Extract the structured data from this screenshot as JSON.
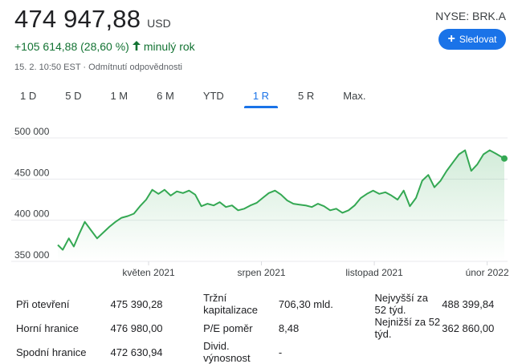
{
  "quote": {
    "price": "474 947,88",
    "currency": "USD",
    "ticker": "NYSE: BRK.A",
    "change": "+105 614,88 (28,60 %)",
    "change_arrow": "arrow-up-icon",
    "change_period": "minulý rok",
    "timestamp": "15. 2. 10:50 EST",
    "separator": "·",
    "disclaimer": "Odmítnutí odpovědnosti",
    "positive_color": "#137333",
    "accent_color": "#1a73e8"
  },
  "follow_button": {
    "icon": "plus-icon",
    "label": "Sledovat"
  },
  "range_tabs": [
    {
      "label": "1 D",
      "active": false
    },
    {
      "label": "5 D",
      "active": false
    },
    {
      "label": "1 M",
      "active": false
    },
    {
      "label": "6 M",
      "active": false
    },
    {
      "label": "YTD",
      "active": false
    },
    {
      "label": "1 R",
      "active": true
    },
    {
      "label": "5 R",
      "active": false
    },
    {
      "label": "Max.",
      "active": false
    }
  ],
  "chart_data": {
    "type": "area",
    "y_ticks": [
      "500 000",
      "450 000",
      "400 000",
      "350 000"
    ],
    "y_tick_values": [
      500000,
      450000,
      400000,
      350000
    ],
    "ylim": [
      350000,
      500000
    ],
    "x_ticks": [
      "květen 2021",
      "srpen 2021",
      "listopad 2021",
      "únor 2022"
    ],
    "x_tick_values": [
      "2021-05-01",
      "2021-08-01",
      "2021-11-01",
      "2022-02-01"
    ],
    "xlim": [
      "2021-02-16",
      "2022-02-15"
    ],
    "grid": true,
    "line_color": "#34a853",
    "x": [
      "2021-02-16",
      "2021-02-20",
      "2021-02-25",
      "2021-03-01",
      "2021-03-05",
      "2021-03-10",
      "2021-03-15",
      "2021-03-20",
      "2021-03-25",
      "2021-03-30",
      "2021-04-04",
      "2021-04-09",
      "2021-04-14",
      "2021-04-19",
      "2021-04-24",
      "2021-04-29",
      "2021-05-04",
      "2021-05-09",
      "2021-05-14",
      "2021-05-19",
      "2021-05-24",
      "2021-05-29",
      "2021-06-03",
      "2021-06-08",
      "2021-06-13",
      "2021-06-18",
      "2021-06-23",
      "2021-06-28",
      "2021-07-03",
      "2021-07-08",
      "2021-07-13",
      "2021-07-18",
      "2021-07-23",
      "2021-07-28",
      "2021-08-02",
      "2021-08-07",
      "2021-08-12",
      "2021-08-17",
      "2021-08-22",
      "2021-08-27",
      "2021-09-01",
      "2021-09-06",
      "2021-09-11",
      "2021-09-16",
      "2021-09-21",
      "2021-09-26",
      "2021-10-01",
      "2021-10-06",
      "2021-10-11",
      "2021-10-16",
      "2021-10-21",
      "2021-10-26",
      "2021-10-31",
      "2021-11-05",
      "2021-11-10",
      "2021-11-15",
      "2021-11-20",
      "2021-11-25",
      "2021-11-30",
      "2021-12-05",
      "2021-12-10",
      "2021-12-15",
      "2021-12-20",
      "2021-12-25",
      "2021-12-30",
      "2022-01-04",
      "2022-01-09",
      "2022-01-14",
      "2022-01-19",
      "2022-01-24",
      "2022-01-29",
      "2022-02-03",
      "2022-02-08",
      "2022-02-15"
    ],
    "y": [
      370000,
      364000,
      378000,
      368000,
      382000,
      398000,
      388000,
      378000,
      385000,
      392000,
      398000,
      403000,
      405000,
      408000,
      417000,
      425000,
      437000,
      432000,
      437000,
      430000,
      435000,
      433000,
      436000,
      431000,
      417000,
      420000,
      418000,
      422000,
      416000,
      418000,
      412000,
      414000,
      418000,
      421000,
      427000,
      433000,
      436000,
      431000,
      424000,
      420000,
      419000,
      418000,
      416000,
      420000,
      417000,
      412000,
      414000,
      409000,
      412000,
      418000,
      427000,
      432000,
      436000,
      432000,
      434000,
      430000,
      425000,
      436000,
      417000,
      427000,
      448000,
      455000,
      440000,
      448000,
      460000,
      470000,
      480000,
      485000,
      460000,
      468000,
      480000,
      485000,
      481000,
      474948
    ]
  },
  "stats": [
    [
      {
        "label": "Při otevření",
        "value": "475 390,28"
      },
      {
        "label": "Horní hranice",
        "value": "476 980,00"
      },
      {
        "label": "Spodní hranice",
        "value": "472 630,94"
      }
    ],
    [
      {
        "label": "Tržní kapitalizace",
        "value": "706,30 mld."
      },
      {
        "label": "P/E poměr",
        "value": "8,48"
      },
      {
        "label": "Divid. výnosnost",
        "value": "-"
      }
    ],
    [
      {
        "label": "Nejvyšší za 52 týd.",
        "value": "488 399,84"
      },
      {
        "label": "Nejnižší za 52 týd.",
        "value": "362 860,00"
      }
    ]
  ]
}
